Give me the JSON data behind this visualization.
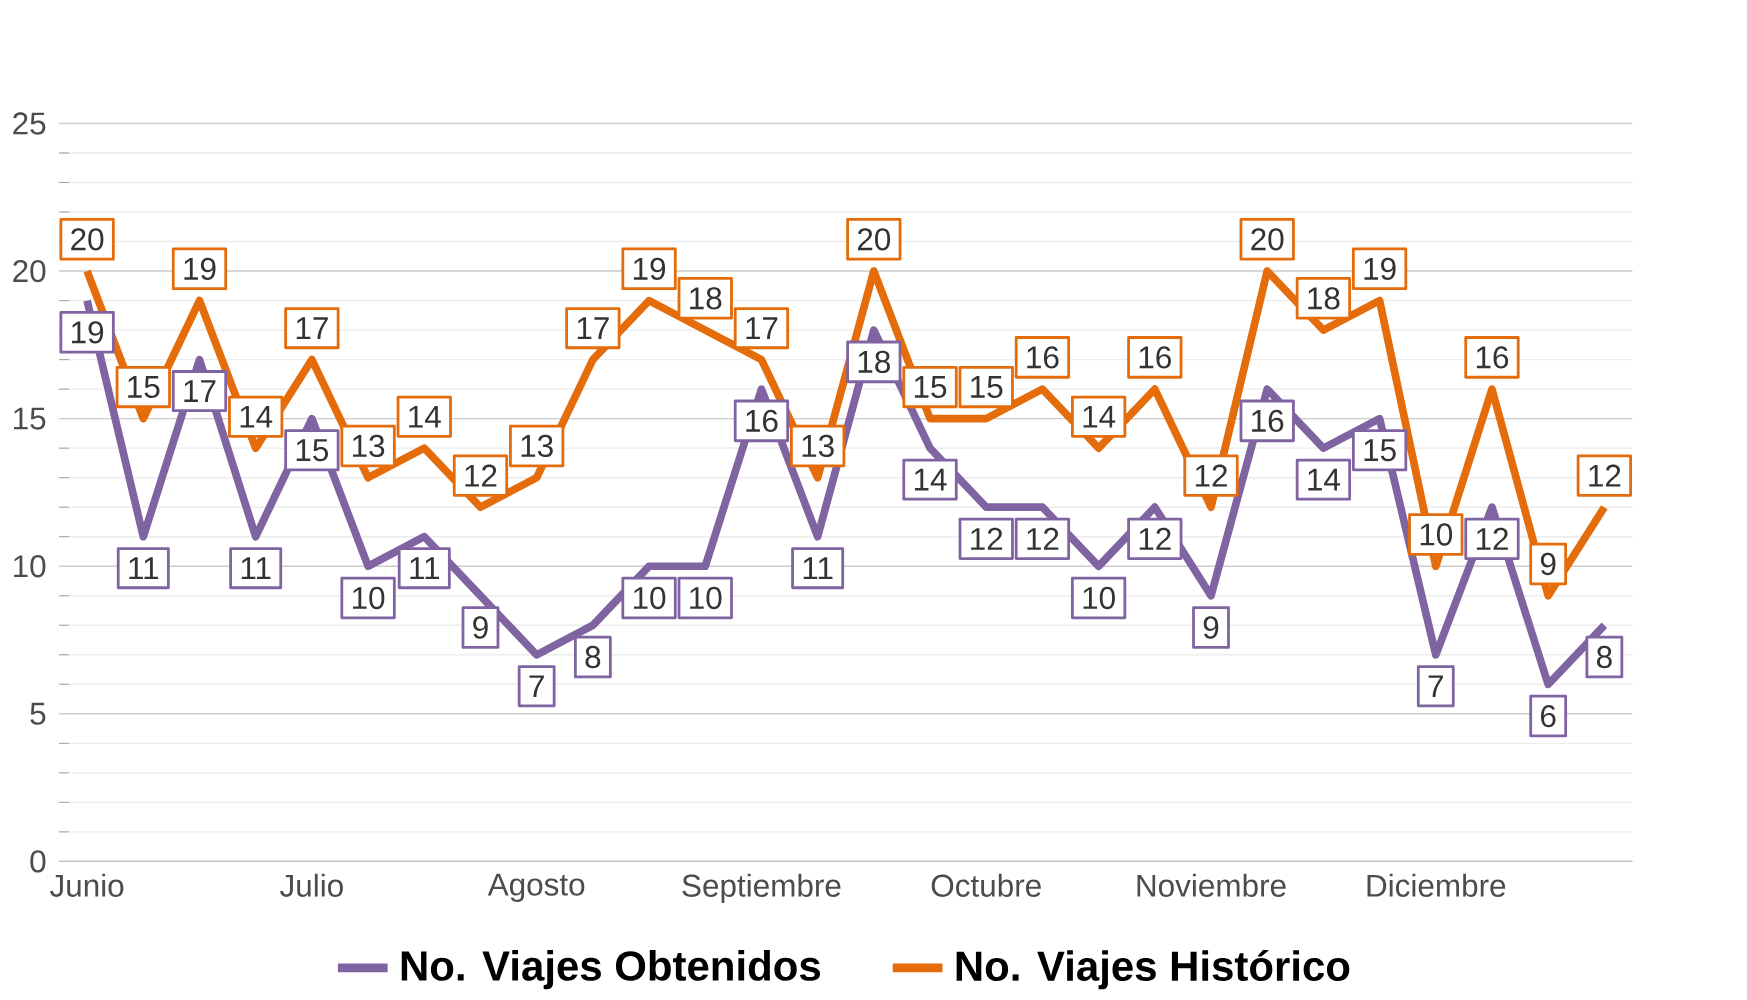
{
  "chart_data": {
    "type": "line",
    "categories": [
      "Junio",
      null,
      null,
      null,
      "Julio",
      null,
      null,
      null,
      "Agosto",
      null,
      null,
      null,
      "Septiembre",
      null,
      null,
      null,
      "Octubre",
      null,
      null,
      null,
      "Noviembre",
      null,
      null,
      null,
      "Diciembre",
      null,
      null,
      null
    ],
    "series": [
      {
        "name": "No. Viajes Obtenidos",
        "color": "#8064a2",
        "values": [
          19,
          11,
          17,
          11,
          15,
          10,
          11,
          9,
          7,
          8,
          10,
          10,
          16,
          11,
          18,
          14,
          12,
          12,
          10,
          12,
          9,
          16,
          14,
          15,
          7,
          12,
          6,
          8
        ]
      },
      {
        "name": "No. Viajes Histórico",
        "color": "#e46c0a",
        "values": [
          20,
          15,
          19,
          14,
          17,
          13,
          14,
          12,
          13,
          17,
          19,
          18,
          17,
          13,
          20,
          15,
          15,
          16,
          14,
          16,
          12,
          20,
          18,
          19,
          10,
          16,
          9,
          12
        ]
      }
    ],
    "ylim": [
      0,
      25
    ],
    "yticks": [
      0,
      5,
      10,
      15,
      20,
      25
    ],
    "grid": "y",
    "legend": "bottom",
    "data_labels": true,
    "marker": "none",
    "line_style": "solid"
  }
}
